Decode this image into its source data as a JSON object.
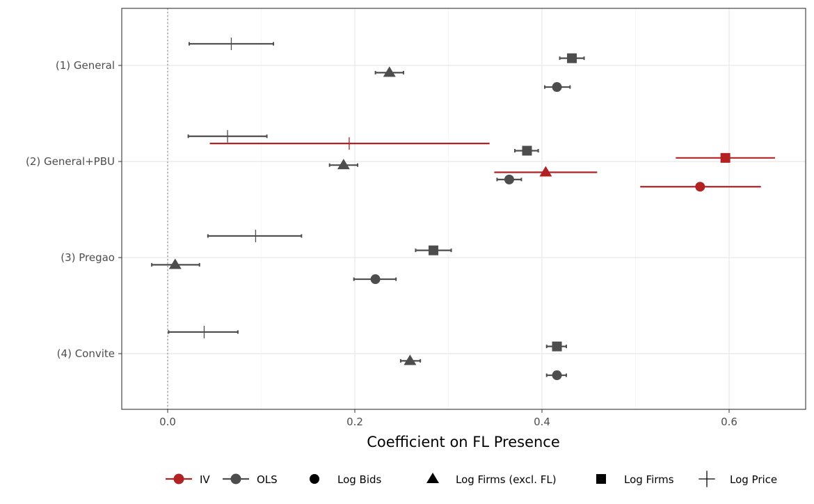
{
  "chart_data": {
    "type": "scatter",
    "subtype": "coefficient plot with confidence intervals",
    "xlabel": "Coefficient on FL Presence",
    "ylabel": "",
    "xlim": [
      -0.05,
      0.68
    ],
    "x_ticks": [
      0.0,
      0.2,
      0.4,
      0.6
    ],
    "x_tick_labels": [
      "0.0",
      "0.2",
      "0.4",
      "0.6"
    ],
    "categories": [
      "(1) General",
      "(2) General+PBU",
      "(3) Pregao",
      "(4) Convite"
    ],
    "reference_line": 0,
    "grid": true,
    "legend_position": "bottom",
    "models": [
      {
        "name": "IV",
        "color": "#b22222"
      },
      {
        "name": "OLS",
        "color": "#4d4d4d"
      }
    ],
    "outcomes": [
      {
        "name": "Log Bids",
        "shape": "circle"
      },
      {
        "name": "Log Firms (excl. FL)",
        "shape": "triangle"
      },
      {
        "name": "Log Firms",
        "shape": "square"
      },
      {
        "name": "Log Price",
        "shape": "plus"
      }
    ],
    "points": [
      {
        "category": "(1) General",
        "model": "OLS",
        "outcome": "Log Price",
        "estimate": 0.068,
        "lo": 0.023,
        "hi": 0.113
      },
      {
        "category": "(1) General",
        "model": "OLS",
        "outcome": "Log Firms",
        "estimate": 0.432,
        "lo": 0.419,
        "hi": 0.445
      },
      {
        "category": "(1) General",
        "model": "OLS",
        "outcome": "Log Firms (excl. FL)",
        "estimate": 0.237,
        "lo": 0.222,
        "hi": 0.252
      },
      {
        "category": "(1) General",
        "model": "OLS",
        "outcome": "Log Bids",
        "estimate": 0.416,
        "lo": 0.403,
        "hi": 0.43
      },
      {
        "category": "(2) General+PBU",
        "model": "OLS",
        "outcome": "Log Price",
        "estimate": 0.064,
        "lo": 0.022,
        "hi": 0.106
      },
      {
        "category": "(2) General+PBU",
        "model": "IV",
        "outcome": "Log Price",
        "estimate": 0.194,
        "lo": 0.045,
        "hi": 0.344
      },
      {
        "category": "(2) General+PBU",
        "model": "OLS",
        "outcome": "Log Firms",
        "estimate": 0.384,
        "lo": 0.371,
        "hi": 0.396
      },
      {
        "category": "(2) General+PBU",
        "model": "IV",
        "outcome": "Log Firms",
        "estimate": 0.596,
        "lo": 0.543,
        "hi": 0.649
      },
      {
        "category": "(2) General+PBU",
        "model": "OLS",
        "outcome": "Log Firms (excl. FL)",
        "estimate": 0.188,
        "lo": 0.173,
        "hi": 0.203
      },
      {
        "category": "(2) General+PBU",
        "model": "IV",
        "outcome": "Log Firms (excl. FL)",
        "estimate": 0.404,
        "lo": 0.349,
        "hi": 0.459
      },
      {
        "category": "(2) General+PBU",
        "model": "OLS",
        "outcome": "Log Bids",
        "estimate": 0.365,
        "lo": 0.352,
        "hi": 0.378
      },
      {
        "category": "(2) General+PBU",
        "model": "IV",
        "outcome": "Log Bids",
        "estimate": 0.569,
        "lo": 0.505,
        "hi": 0.634
      },
      {
        "category": "(3) Pregao",
        "model": "OLS",
        "outcome": "Log Price",
        "estimate": 0.094,
        "lo": 0.043,
        "hi": 0.143
      },
      {
        "category": "(3) Pregao",
        "model": "OLS",
        "outcome": "Log Firms",
        "estimate": 0.284,
        "lo": 0.265,
        "hi": 0.303
      },
      {
        "category": "(3) Pregao",
        "model": "OLS",
        "outcome": "Log Firms (excl. FL)",
        "estimate": 0.008,
        "lo": -0.017,
        "hi": 0.034
      },
      {
        "category": "(3) Pregao",
        "model": "OLS",
        "outcome": "Log Bids",
        "estimate": 0.222,
        "lo": 0.199,
        "hi": 0.244
      },
      {
        "category": "(4) Convite",
        "model": "OLS",
        "outcome": "Log Price",
        "estimate": 0.039,
        "lo": 0.001,
        "hi": 0.075
      },
      {
        "category": "(4) Convite",
        "model": "OLS",
        "outcome": "Log Firms",
        "estimate": 0.416,
        "lo": 0.405,
        "hi": 0.426
      },
      {
        "category": "(4) Convite",
        "model": "OLS",
        "outcome": "Log Firms (excl. FL)",
        "estimate": 0.259,
        "lo": 0.249,
        "hi": 0.27
      },
      {
        "category": "(4) Convite",
        "model": "OLS",
        "outcome": "Log Bids",
        "estimate": 0.416,
        "lo": 0.405,
        "hi": 0.426
      }
    ]
  }
}
